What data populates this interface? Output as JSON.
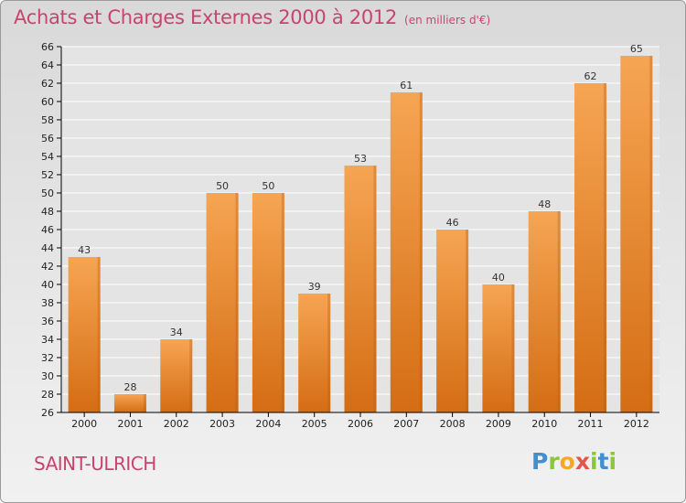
{
  "chart_title": "Achats et Charges Externes 2000 à 2012",
  "chart_subtitle": "(en milliers d'€)",
  "location": "SAINT-ULRICH",
  "brand": {
    "name": "Proxiti",
    "letters": [
      {
        "ch": "P",
        "color": "#3f8fd1"
      },
      {
        "ch": "r",
        "color": "#8cc63f"
      },
      {
        "ch": "o",
        "color": "#f7a823"
      },
      {
        "ch": "x",
        "color": "#e2574c"
      },
      {
        "ch": "i",
        "color": "#8cc63f"
      },
      {
        "ch": "t",
        "color": "#3f8fd1"
      },
      {
        "ch": "i",
        "color": "#8cc63f"
      }
    ]
  },
  "colors": {
    "bar_top": "#f6a553",
    "bar_bottom": "#d46d14",
    "title": "#c8446e",
    "axis": "#000000",
    "grid": "#ffffff"
  },
  "chart_data": {
    "type": "bar",
    "title": "Achats et Charges Externes 2000 à 2012",
    "subtitle": "(en milliers d'€)",
    "categories": [
      "2000",
      "2001",
      "2002",
      "2003",
      "2004",
      "2005",
      "2006",
      "2007",
      "2008",
      "2009",
      "2010",
      "2011",
      "2012"
    ],
    "values": [
      43,
      28,
      34,
      50,
      50,
      39,
      53,
      61,
      46,
      40,
      48,
      62,
      65
    ],
    "ylim": [
      26,
      66
    ],
    "ytick_step": 2,
    "grid": "horizontal",
    "data_labels": true,
    "xlabel": "",
    "ylabel": ""
  }
}
